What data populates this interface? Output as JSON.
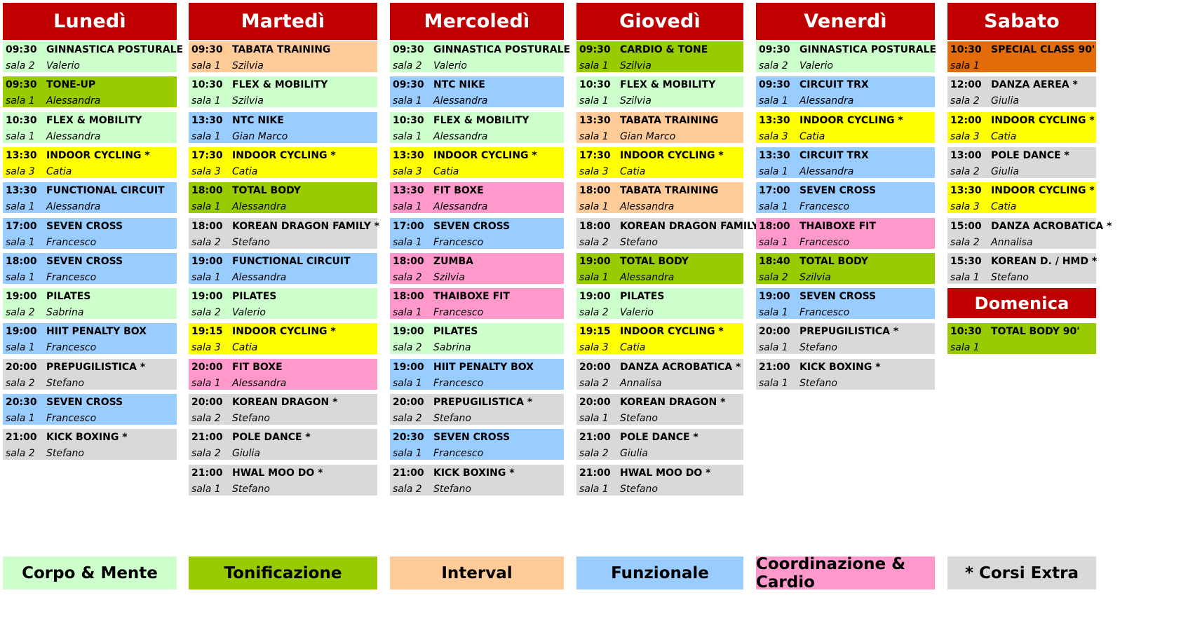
{
  "colors": {
    "header": "#c00000",
    "corpo_mente": "#ccffcc",
    "tonificazione": "#99cc00",
    "interval": "#ffcc99",
    "funzionale": "#99ccff",
    "coordinazione_cardio": "#ff99cc",
    "extra": "#d9d9d9",
    "cycling": "#ffff00",
    "special": "#e26b0a"
  },
  "days": [
    {
      "name": "Lunedì",
      "classes": [
        {
          "time": "09:30",
          "name": "GINNASTICA POSTURALE",
          "room": "sala 2",
          "instructor": "Valerio",
          "cat": "corpo_mente"
        },
        {
          "time": "09:30",
          "name": "TONE-UP",
          "room": "sala 1",
          "instructor": "Alessandra",
          "cat": "tonificazione"
        },
        {
          "time": "10:30",
          "name": "FLEX & MOBILITY",
          "room": "sala 1",
          "instructor": "Alessandra",
          "cat": "corpo_mente"
        },
        {
          "time": "13:30",
          "name": "INDOOR CYCLING *",
          "room": "sala 3",
          "instructor": "Catia",
          "cat": "cycling"
        },
        {
          "time": "13:30",
          "name": "FUNCTIONAL CIRCUIT",
          "room": "sala 1",
          "instructor": "Alessandra",
          "cat": "funzionale"
        },
        {
          "time": "17:00",
          "name": "SEVEN CROSS",
          "room": "sala 1",
          "instructor": "Francesco",
          "cat": "funzionale"
        },
        {
          "time": "18:00",
          "name": "SEVEN CROSS",
          "room": "sala 1",
          "instructor": "Francesco",
          "cat": "funzionale"
        },
        {
          "time": "19:00",
          "name": "PILATES",
          "room": "sala 2",
          "instructor": "Sabrina",
          "cat": "corpo_mente"
        },
        {
          "time": "19:00",
          "name": "HIIT PENALTY BOX",
          "room": "sala 1",
          "instructor": "Francesco",
          "cat": "funzionale"
        },
        {
          "time": "20:00",
          "name": "PREPUGILISTICA *",
          "room": "sala 2",
          "instructor": "Stefano",
          "cat": "extra"
        },
        {
          "time": "20:30",
          "name": "SEVEN CROSS",
          "room": "sala 1",
          "instructor": "Francesco",
          "cat": "funzionale"
        },
        {
          "time": "21:00",
          "name": "KICK BOXING *",
          "room": "sala 2",
          "instructor": "Stefano",
          "cat": "extra"
        }
      ]
    },
    {
      "name": "Martedì",
      "classes": [
        {
          "time": "09:30",
          "name": "TABATA TRAINING",
          "room": "sala 1",
          "instructor": "Szilvia",
          "cat": "interval"
        },
        {
          "time": "10:30",
          "name": "FLEX & MOBILITY",
          "room": "sala 1",
          "instructor": "Szilvia",
          "cat": "corpo_mente"
        },
        {
          "time": "13:30",
          "name": "NTC NIKE",
          "room": "sala 1",
          "instructor": "Gian Marco",
          "cat": "funzionale"
        },
        {
          "time": "17:30",
          "name": "INDOOR CYCLING *",
          "room": "sala 3",
          "instructor": "Catia",
          "cat": "cycling"
        },
        {
          "time": "18:00",
          "name": "TOTAL BODY",
          "room": "sala 1",
          "instructor": "Alessandra",
          "cat": "tonificazione"
        },
        {
          "time": "18:00",
          "name": "KOREAN DRAGON FAMILY *",
          "room": "sala 2",
          "instructor": "Stefano",
          "cat": "extra"
        },
        {
          "time": "19:00",
          "name": "FUNCTIONAL CIRCUIT",
          "room": "sala 1",
          "instructor": "Alessandra",
          "cat": "funzionale"
        },
        {
          "time": "19:00",
          "name": "PILATES",
          "room": "sala 2",
          "instructor": "Valerio",
          "cat": "corpo_mente"
        },
        {
          "time": "19:15",
          "name": "INDOOR CYCLING *",
          "room": "sala 3",
          "instructor": "Catia",
          "cat": "cycling"
        },
        {
          "time": "20:00",
          "name": "FIT BOXE",
          "room": "sala 1",
          "instructor": "Alessandra",
          "cat": "coordinazione_cardio"
        },
        {
          "time": "20:00",
          "name": "KOREAN DRAGON *",
          "room": "sala 2",
          "instructor": "Stefano",
          "cat": "extra"
        },
        {
          "time": "21:00",
          "name": "POLE DANCE *",
          "room": "sala 2",
          "instructor": "Giulia",
          "cat": "extra"
        },
        {
          "time": "21:00",
          "name": "HWAL MOO DO *",
          "room": "sala 1",
          "instructor": "Stefano",
          "cat": "extra"
        }
      ]
    },
    {
      "name": "Mercoledì",
      "classes": [
        {
          "time": "09:30",
          "name": "GINNASTICA POSTURALE",
          "room": "sala 2",
          "instructor": "Valerio",
          "cat": "corpo_mente"
        },
        {
          "time": "09:30",
          "name": "NTC NIKE",
          "room": "sala 1",
          "instructor": "Alessandra",
          "cat": "funzionale"
        },
        {
          "time": "10:30",
          "name": "FLEX & MOBILITY",
          "room": "sala 1",
          "instructor": "Alessandra",
          "cat": "corpo_mente"
        },
        {
          "time": "13:30",
          "name": "INDOOR CYCLING *",
          "room": "sala 3",
          "instructor": "Catia",
          "cat": "cycling"
        },
        {
          "time": "13:30",
          "name": "FIT BOXE",
          "room": "sala 1",
          "instructor": "Alessandra",
          "cat": "coordinazione_cardio"
        },
        {
          "time": "17:00",
          "name": "SEVEN CROSS",
          "room": "sala 1",
          "instructor": "Francesco",
          "cat": "funzionale"
        },
        {
          "time": "18:00",
          "name": "ZUMBA",
          "room": "sala 2",
          "instructor": "Szilvia",
          "cat": "coordinazione_cardio"
        },
        {
          "time": "18:00",
          "name": "THAIBOXE FIT",
          "room": "sala 1",
          "instructor": "Francesco",
          "cat": "coordinazione_cardio"
        },
        {
          "time": "19:00",
          "name": "PILATES",
          "room": "sala 2",
          "instructor": "Sabrina",
          "cat": "corpo_mente"
        },
        {
          "time": "19:00",
          "name": "HIIT PENALTY BOX",
          "room": "sala 1",
          "instructor": "Francesco",
          "cat": "funzionale"
        },
        {
          "time": "20:00",
          "name": "PREPUGILISTICA *",
          "room": "sala 2",
          "instructor": "Stefano",
          "cat": "extra"
        },
        {
          "time": "20:30",
          "name": "SEVEN CROSS",
          "room": "sala 1",
          "instructor": "Francesco",
          "cat": "funzionale"
        },
        {
          "time": "21:00",
          "name": "KICK BOXING *",
          "room": "sala 2",
          "instructor": "Stefano",
          "cat": "extra"
        }
      ]
    },
    {
      "name": "Giovedì",
      "classes": [
        {
          "time": "09:30",
          "name": "CARDIO & TONE",
          "room": "sala 1",
          "instructor": "Szilvia",
          "cat": "tonificazione"
        },
        {
          "time": "10:30",
          "name": "FLEX & MOBILITY",
          "room": "sala 1",
          "instructor": "Szilvia",
          "cat": "corpo_mente"
        },
        {
          "time": "13:30",
          "name": "TABATA TRAINING",
          "room": "sala 1",
          "instructor": "Gian Marco",
          "cat": "interval"
        },
        {
          "time": "17:30",
          "name": "INDOOR CYCLING *",
          "room": "sala 3",
          "instructor": "Catia",
          "cat": "cycling"
        },
        {
          "time": "18:00",
          "name": "TABATA TRAINING",
          "room": "sala 1",
          "instructor": "Alessandra",
          "cat": "interval"
        },
        {
          "time": "18:00",
          "name": "KOREAN DRAGON FAMILY *",
          "room": "sala 2",
          "instructor": "Stefano",
          "cat": "extra"
        },
        {
          "time": "19:00",
          "name": "TOTAL BODY",
          "room": "sala 1",
          "instructor": "Alessandra",
          "cat": "tonificazione"
        },
        {
          "time": "19:00",
          "name": "PILATES",
          "room": "sala 2",
          "instructor": "Valerio",
          "cat": "corpo_mente"
        },
        {
          "time": "19:15",
          "name": "INDOOR CYCLING *",
          "room": "sala 3",
          "instructor": "Catia",
          "cat": "cycling"
        },
        {
          "time": "20:00",
          "name": "DANZA ACROBATICA *",
          "room": "sala 2",
          "instructor": "Annalisa",
          "cat": "extra"
        },
        {
          "time": "20:00",
          "name": "KOREAN DRAGON *",
          "room": "sala 1",
          "instructor": "Stefano",
          "cat": "extra"
        },
        {
          "time": "21:00",
          "name": "POLE DANCE *",
          "room": "sala 2",
          "instructor": "Giulia",
          "cat": "extra"
        },
        {
          "time": "21:00",
          "name": "HWAL MOO DO *",
          "room": "sala 1",
          "instructor": "Stefano",
          "cat": "extra"
        }
      ]
    },
    {
      "name": "Venerdì",
      "classes": [
        {
          "time": "09:30",
          "name": "GINNASTICA POSTURALE",
          "room": "sala 2",
          "instructor": "Valerio",
          "cat": "corpo_mente"
        },
        {
          "time": "09:30",
          "name": "CIRCUIT TRX",
          "room": "sala 1",
          "instructor": "Alessandra",
          "cat": "funzionale"
        },
        {
          "time": "13:30",
          "name": "INDOOR CYCLING *",
          "room": "sala 3",
          "instructor": "Catia",
          "cat": "cycling"
        },
        {
          "time": "13:30",
          "name": "CIRCUIT TRX",
          "room": "sala 1",
          "instructor": "Alessandra",
          "cat": "funzionale"
        },
        {
          "time": "17:00",
          "name": "SEVEN CROSS",
          "room": "sala 1",
          "instructor": "Francesco",
          "cat": "funzionale"
        },
        {
          "time": "18:00",
          "name": "THAIBOXE FIT",
          "room": "sala 1",
          "instructor": "Francesco",
          "cat": "coordinazione_cardio"
        },
        {
          "time": "18:40",
          "name": "TOTAL BODY",
          "room": "sala 2",
          "instructor": "Szilvia",
          "cat": "tonificazione"
        },
        {
          "time": "19:00",
          "name": "SEVEN CROSS",
          "room": "sala 1",
          "instructor": "Francesco",
          "cat": "funzionale"
        },
        {
          "time": "20:00",
          "name": "PREPUGILISTICA *",
          "room": "sala 1",
          "instructor": "Stefano",
          "cat": "extra"
        },
        {
          "time": "21:00",
          "name": "KICK BOXING *",
          "room": "sala 1",
          "instructor": "Stefano",
          "cat": "extra"
        }
      ]
    },
    {
      "name": "Sabato",
      "classes": [
        {
          "time": "10:30",
          "name": "SPECIAL CLASS 90'",
          "room": "sala 1",
          "instructor": "",
          "cat": "special"
        },
        {
          "time": "12:00",
          "name": "DANZA AEREA *",
          "room": "sala 2",
          "instructor": "Giulia",
          "cat": "extra"
        },
        {
          "time": "12:00",
          "name": "INDOOR CYCLING *",
          "room": "sala 3",
          "instructor": "Catia",
          "cat": "cycling"
        },
        {
          "time": "13:00",
          "name": "POLE DANCE *",
          "room": "sala 2",
          "instructor": "Giulia",
          "cat": "extra"
        },
        {
          "time": "13:30",
          "name": "INDOOR CYCLING *",
          "room": "sala 3",
          "instructor": "Catia",
          "cat": "cycling"
        },
        {
          "time": "15:00",
          "name": "DANZA ACROBATICA *",
          "room": "sala 2",
          "instructor": "Annalisa",
          "cat": "extra"
        },
        {
          "time": "15:30",
          "name": "KOREAN D. / HMD *",
          "room": "sala 1",
          "instructor": "Stefano",
          "cat": "extra"
        }
      ]
    },
    {
      "name": "Domenica",
      "classes": [
        {
          "time": "10:30",
          "name": "TOTAL BODY 90'",
          "room": "sala 1",
          "instructor": "",
          "cat": "tonificazione"
        }
      ]
    }
  ],
  "legend": [
    {
      "label": "Corpo & Mente",
      "cat": "corpo_mente"
    },
    {
      "label": "Tonificazione",
      "cat": "tonificazione"
    },
    {
      "label": "Interval",
      "cat": "interval"
    },
    {
      "label": "Funzionale",
      "cat": "funzionale"
    },
    {
      "label": "Coordinazione & Cardio",
      "cat": "coordinazione_cardio"
    },
    {
      "label": "* Corsi Extra",
      "cat": "extra"
    }
  ]
}
